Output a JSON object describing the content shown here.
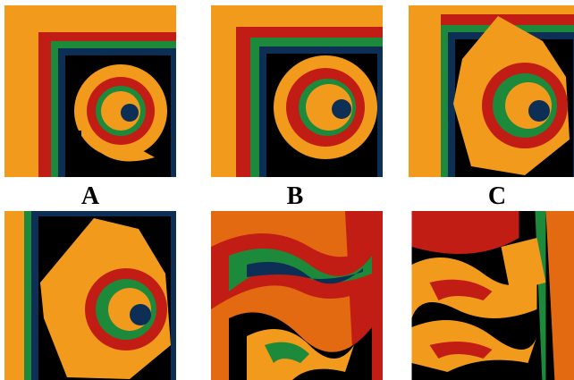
{
  "panels": [
    {
      "id": "A",
      "label": "A"
    },
    {
      "id": "B",
      "label": "B"
    },
    {
      "id": "C",
      "label": "C"
    },
    {
      "id": "D",
      "label": ""
    },
    {
      "id": "E",
      "label": ""
    },
    {
      "id": "F",
      "label": ""
    }
  ],
  "colors": {
    "background": "#000000",
    "bright_orange": "#f29a1c",
    "deep_orange": "#e46a12",
    "red": "#c21d14",
    "green": "#1c8a3a",
    "teal": "#0f6a64",
    "dark_blue": "#0d2f55"
  }
}
